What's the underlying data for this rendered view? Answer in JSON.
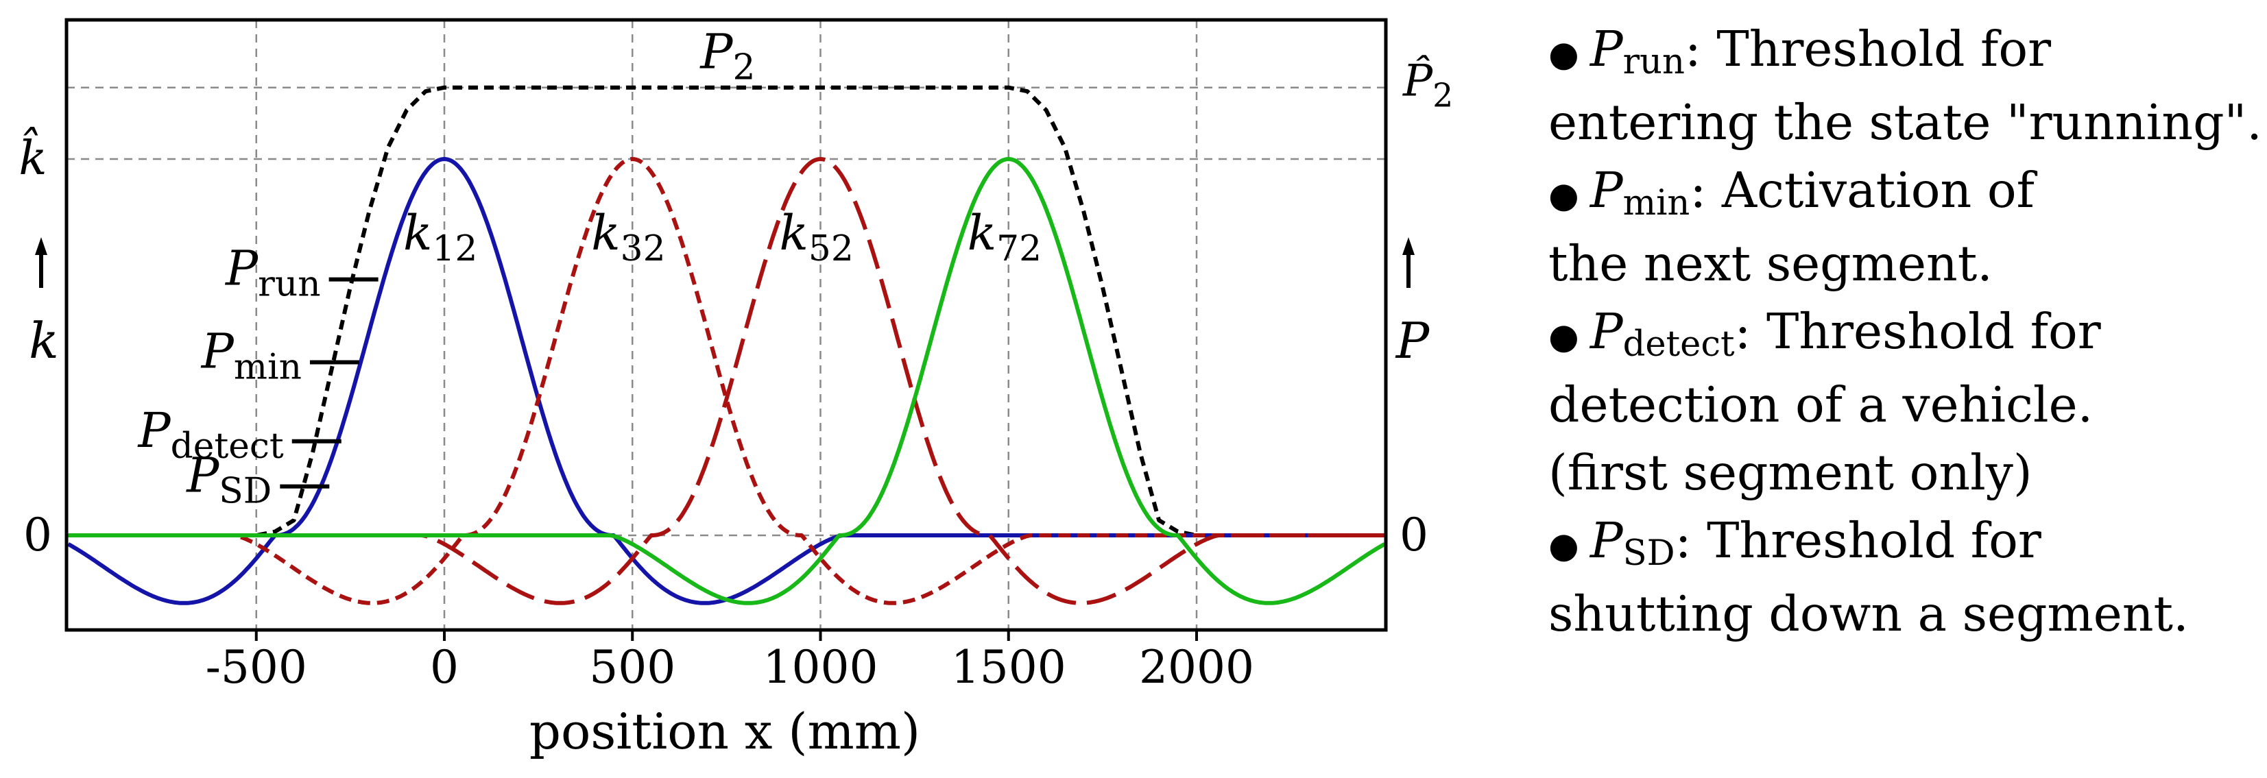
{
  "chart_data": {
    "type": "line",
    "xlabel": "position x (mm)",
    "xlim": [
      -1000,
      2500
    ],
    "ylim": [
      -0.25,
      1.25
    ],
    "x_ticks": [
      -500,
      0,
      500,
      1000,
      1500,
      2000
    ],
    "x_tick_labels": [
      "-500",
      "0",
      "500",
      "1000",
      "1500",
      "2000"
    ],
    "grid": true,
    "y_labels_left": {
      "top": "k̂",
      "arrow_var": "k",
      "zero": "0"
    },
    "y_labels_right": {
      "top": "P̂",
      "top_sub": "2",
      "arrow_var": "P",
      "zero": "0"
    },
    "series": [
      {
        "name": "P",
        "sub": "2",
        "style": "dotted",
        "color": "#000000",
        "x": [
          -1000,
          -500,
          -450,
          -400,
          -350,
          -300,
          -250,
          -200,
          -150,
          -100,
          -50,
          0,
          1500,
          1550,
          1600,
          1650,
          1700,
          1750,
          1800,
          1850,
          1900,
          1950,
          2000,
          2500
        ],
        "y": [
          0,
          0,
          0.01,
          0.04,
          0.22,
          0.44,
          0.66,
          0.86,
          1.03,
          1.13,
          1.18,
          1.19,
          1.19,
          1.18,
          1.13,
          1.03,
          0.86,
          0.66,
          0.44,
          0.22,
          0.04,
          0.01,
          0,
          0
        ]
      },
      {
        "name": "k",
        "sub": "12",
        "style": "solid",
        "color": "#1414a8",
        "center": 0
      },
      {
        "name": "k",
        "sub": "32",
        "style": "short-dash",
        "color": "#aa1212",
        "center": 500
      },
      {
        "name": "k",
        "sub": "52",
        "style": "long-dash",
        "color": "#aa1212",
        "center": 1000
      },
      {
        "name": "k",
        "sub": "72",
        "style": "solid",
        "color": "#18b818",
        "center": 1500
      }
    ],
    "k_peak": 1.0,
    "k_min": -0.18,
    "thresholds": [
      {
        "name": "P",
        "sub": "run",
        "p": 0.68
      },
      {
        "name": "P",
        "sub": "min",
        "p": 0.46
      },
      {
        "name": "P",
        "sub": "detect",
        "p": 0.25
      },
      {
        "name": "P",
        "sub": "SD",
        "p": 0.13
      }
    ]
  },
  "legend": [
    {
      "var": "P",
      "sub": "run",
      "text": ": Threshold for",
      "cont": "entering the state \"running\"."
    },
    {
      "var": "P",
      "sub": "min",
      "text": ": Activation of",
      "cont": "the next segment."
    },
    {
      "var": "P",
      "sub": "detect",
      "text": ": Threshold for",
      "cont": "detection of a vehicle.",
      "cont2": "(first segment only)"
    },
    {
      "var": "P",
      "sub": "SD",
      "text": ": Threshold for",
      "cont": "shutting down a segment."
    }
  ],
  "bullet": "●"
}
